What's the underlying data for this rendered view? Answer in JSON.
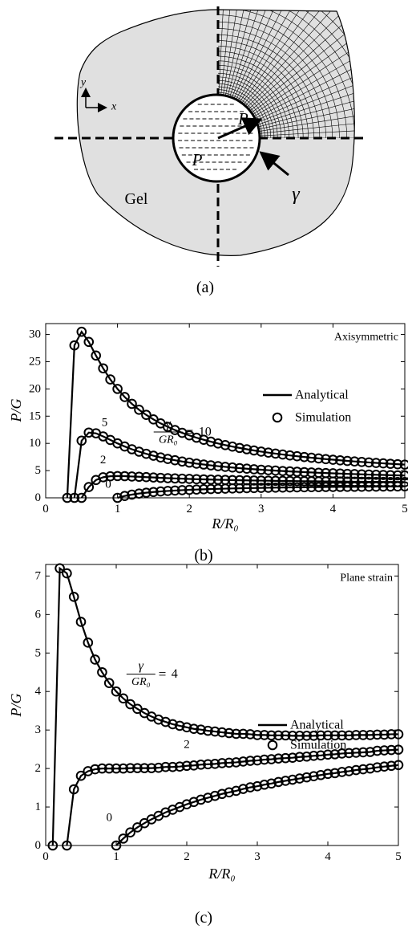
{
  "diagram": {
    "axis_y": "y",
    "axis_x": "x",
    "radius": "R₀",
    "pressure": "P",
    "material": "Gel",
    "surface_tension": "γ",
    "caption": "(a)"
  },
  "chart_data": [
    {
      "type": "line",
      "caption": "(b)",
      "corner_text": "Axisymmetric",
      "x_label": "R/R₀",
      "y_label": "P/G",
      "legend": [
        "Analytical",
        "Simulation"
      ],
      "color": "#000000",
      "xlim": [
        0,
        5
      ],
      "ylim": [
        0,
        32
      ],
      "xticks": [
        0,
        1,
        2,
        3,
        4,
        5
      ],
      "yticks": [
        0,
        5,
        10,
        15,
        20,
        25,
        30
      ],
      "fraction": {
        "numerator": "γ",
        "denominator": "GR₀",
        "relation": "="
      },
      "x": [
        0.3,
        0.4,
        0.5,
        0.6,
        0.7,
        0.8,
        0.9,
        1.0,
        1.1,
        1.2,
        1.3,
        1.4,
        1.5,
        1.6,
        1.7,
        1.8,
        1.9,
        2.0,
        2.1,
        2.2,
        2.3,
        2.4,
        2.5,
        2.6,
        2.7,
        2.8,
        2.9,
        3.0,
        3.1,
        3.2,
        3.3,
        3.4,
        3.5,
        3.6,
        3.7,
        3.8,
        3.9,
        4.0,
        4.1,
        4.2,
        4.3,
        4.4,
        4.5,
        4.6,
        4.7,
        4.8,
        4.9,
        5.0
      ],
      "curves": [
        {
          "label": "10",
          "values": [
            0,
            28.0,
            30.5,
            28.64,
            26.13,
            23.78,
            21.74,
            20,
            18.52,
            17.26,
            16.17,
            15.23,
            14.4,
            13.67,
            13.03,
            12.45,
            11.94,
            11.47,
            11.04,
            10.66,
            10.31,
            9.98,
            9.69,
            9.41,
            9.16,
            8.92,
            8.7,
            8.49,
            8.3,
            8.12,
            7.95,
            7.79,
            7.64,
            7.5,
            7.36,
            7.24,
            7.11,
            7.0,
            6.89,
            6.78,
            6.68,
            6.59,
            6.5,
            6.41,
            6.33,
            6.25,
            6.17,
            6.1
          ]
        },
        {
          "label": "5",
          "values": [
            null,
            0,
            10.5,
            11.98,
            11.85,
            11.28,
            10.63,
            10,
            9.43,
            8.92,
            8.48,
            8.08,
            7.74,
            7.42,
            7.14,
            6.9,
            6.67,
            6.47,
            6.28,
            6.12,
            5.96,
            5.82,
            5.69,
            5.57,
            5.45,
            5.35,
            5.25,
            5.16,
            5.08,
            5.0,
            4.92,
            4.85,
            4.79,
            4.72,
            4.66,
            4.6,
            4.55,
            4.5,
            4.45,
            4.4,
            4.36,
            4.31,
            4.27,
            4.23,
            4.2,
            4.16,
            4.13,
            4.1
          ]
        },
        {
          "label": "2",
          "values": [
            null,
            null,
            0,
            1.98,
            3.27,
            3.78,
            3.96,
            4,
            3.98,
            3.92,
            3.87,
            3.8,
            3.74,
            3.67,
            3.61,
            3.56,
            3.52,
            3.47,
            3.42,
            3.39,
            3.35,
            3.32,
            3.29,
            3.26,
            3.23,
            3.21,
            3.18,
            3.16,
            3.14,
            3.12,
            3.1,
            3.09,
            3.07,
            3.05,
            3.04,
            3.02,
            3.01,
            3.0,
            2.99,
            2.97,
            2.96,
            2.95,
            2.94,
            2.93,
            2.92,
            2.91,
            2.91,
            2.9
          ]
        },
        {
          "label": "0",
          "values": [
            null,
            null,
            null,
            null,
            null,
            null,
            null,
            0,
            0.34,
            0.59,
            0.79,
            0.94,
            1.07,
            1.17,
            1.26,
            1.34,
            1.41,
            1.47,
            1.52,
            1.57,
            1.61,
            1.65,
            1.69,
            1.72,
            1.75,
            1.78,
            1.8,
            1.83,
            1.85,
            1.87,
            1.89,
            1.91,
            1.93,
            1.94,
            1.96,
            1.97,
            1.99,
            2.0,
            2.01,
            2.02,
            2.03,
            2.04,
            2.05,
            2.06,
            2.07,
            2.08,
            2.09,
            2.1
          ]
        }
      ]
    },
    {
      "type": "line",
      "caption": "(c)",
      "corner_text": "Plane strain",
      "x_label": "R/R₀",
      "y_label": "P/G",
      "legend": [
        "Analytical",
        "Simulation"
      ],
      "color": "#000000",
      "xlim": [
        0,
        5
      ],
      "ylim": [
        0,
        7.3
      ],
      "xticks": [
        0,
        1,
        2,
        3,
        4,
        5
      ],
      "yticks": [
        0,
        1,
        2,
        3,
        4,
        5,
        6,
        7
      ],
      "fraction": {
        "numerator": "γ",
        "denominator": "GR₀",
        "relation": "="
      },
      "x": [
        0.1,
        0.2,
        0.3,
        0.4,
        0.5,
        0.6,
        0.7,
        0.8,
        0.9,
        1.0,
        1.1,
        1.2,
        1.3,
        1.4,
        1.5,
        1.6,
        1.7,
        1.8,
        1.9,
        2.0,
        2.1,
        2.2,
        2.3,
        2.4,
        2.5,
        2.6,
        2.7,
        2.8,
        2.9,
        3.0,
        3.1,
        3.2,
        3.3,
        3.4,
        3.5,
        3.6,
        3.7,
        3.8,
        3.9,
        4.0,
        4.1,
        4.2,
        4.3,
        4.4,
        4.5,
        4.6,
        4.7,
        4.8,
        4.9,
        5.0
      ],
      "curves": [
        {
          "label": "4",
          "values": [
            0,
            7.2,
            7.07,
            6.46,
            5.81,
            5.27,
            4.83,
            4.5,
            4.22,
            4,
            3.82,
            3.67,
            3.55,
            3.44,
            3.35,
            3.27,
            3.21,
            3.15,
            3.11,
            3.07,
            3.03,
            3.01,
            2.98,
            2.96,
            2.94,
            2.92,
            2.9,
            2.9,
            2.89,
            2.87,
            2.87,
            2.86,
            2.86,
            2.86,
            2.85,
            2.85,
            2.85,
            2.85,
            2.86,
            2.86,
            2.86,
            2.86,
            2.86,
            2.87,
            2.87,
            2.87,
            2.88,
            2.88,
            2.89,
            2.89
          ]
        },
        {
          "label": "2",
          "values": [
            null,
            null,
            0,
            1.46,
            1.81,
            1.93,
            1.98,
            2.0,
            2.0,
            2,
            2.0,
            2.01,
            2.01,
            2.01,
            2.01,
            2.02,
            2.04,
            2.04,
            2.05,
            2.07,
            2.08,
            2.1,
            2.11,
            2.12,
            2.14,
            2.15,
            2.16,
            2.18,
            2.2,
            2.21,
            2.23,
            2.24,
            2.26,
            2.27,
            2.28,
            2.3,
            2.31,
            2.33,
            2.34,
            2.36,
            2.37,
            2.39,
            2.4,
            2.41,
            2.42,
            2.43,
            2.46,
            2.47,
            2.48,
            2.49
          ]
        },
        {
          "label": "0",
          "values": [
            null,
            null,
            null,
            null,
            null,
            null,
            null,
            null,
            null,
            0,
            0.18,
            0.34,
            0.47,
            0.58,
            0.68,
            0.77,
            0.86,
            0.93,
            1.0,
            1.07,
            1.13,
            1.19,
            1.24,
            1.29,
            1.34,
            1.38,
            1.42,
            1.47,
            1.51,
            1.54,
            1.58,
            1.61,
            1.65,
            1.68,
            1.71,
            1.74,
            1.77,
            1.8,
            1.83,
            1.86,
            1.88,
            1.91,
            1.93,
            1.96,
            1.98,
            2.0,
            2.03,
            2.05,
            2.07,
            2.09
          ]
        }
      ]
    }
  ]
}
